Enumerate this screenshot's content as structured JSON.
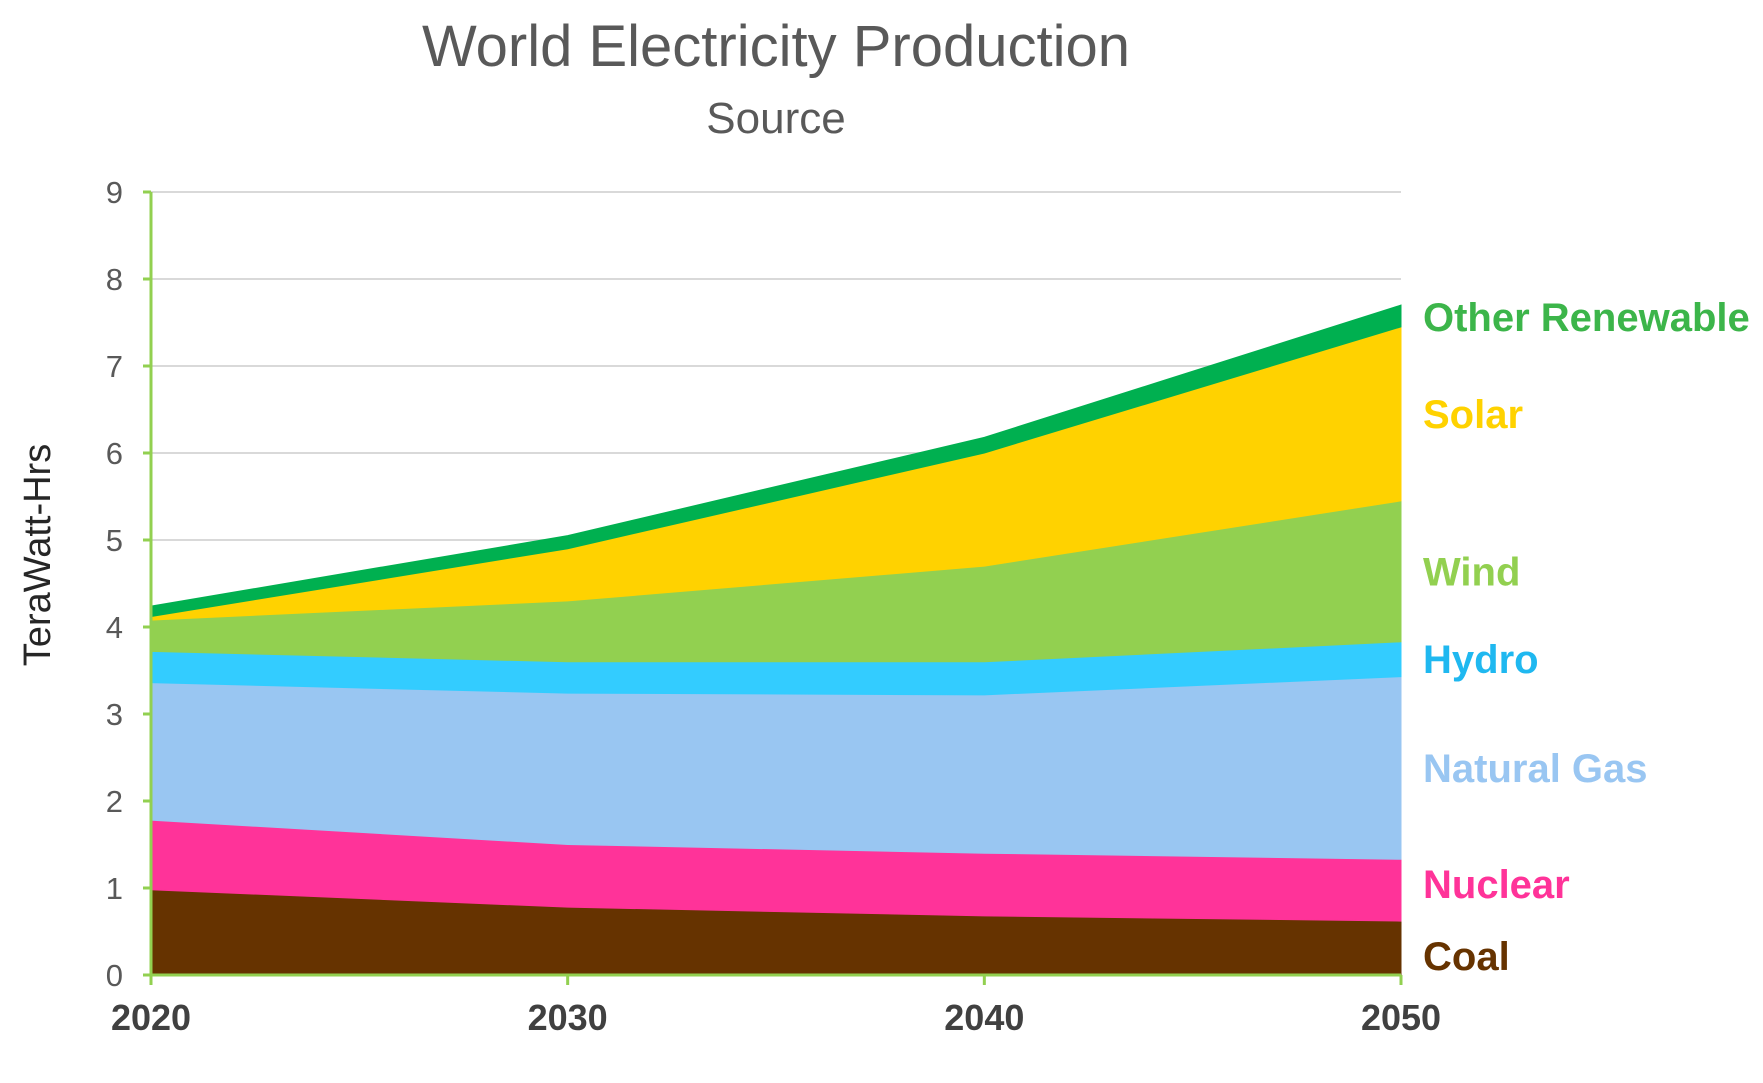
{
  "chart_data": {
    "type": "area",
    "stacked": true,
    "title": "World Electricity Production",
    "subtitle": "Source",
    "ylabel": "TeraWatt-Hrs",
    "xlabel": "",
    "x": [
      2020,
      2030,
      2040,
      2050
    ],
    "ylim": [
      0,
      9
    ],
    "yticks": [
      0,
      1,
      2,
      3,
      4,
      5,
      6,
      7,
      8,
      9
    ],
    "grid": true,
    "legend": "inline-right",
    "series": [
      {
        "name": "Coal",
        "color": "#663300",
        "values": [
          0.98,
          0.78,
          0.68,
          0.62
        ]
      },
      {
        "name": "Nuclear",
        "color": "#ff3399",
        "values": [
          0.8,
          0.72,
          0.72,
          0.71
        ]
      },
      {
        "name": "Natural Gas",
        "color": "#99c6f2",
        "values": [
          1.58,
          1.74,
          1.82,
          2.1
        ]
      },
      {
        "name": "Hydro",
        "color": "#33ccff",
        "values": [
          0.36,
          0.36,
          0.38,
          0.4
        ]
      },
      {
        "name": "Wind",
        "color": "#92d050",
        "values": [
          0.36,
          0.7,
          1.1,
          1.62
        ]
      },
      {
        "name": "Solar",
        "color": "#ffd200",
        "values": [
          0.04,
          0.6,
          1.3,
          2.0
        ]
      },
      {
        "name": "Other Renewable",
        "color": "#00b050",
        "values": [
          0.12,
          0.15,
          0.18,
          0.25
        ]
      }
    ],
    "label_colors": {
      "Coal": "#663300",
      "Nuclear": "#ff3399",
      "Natural Gas": "#99c6f2",
      "Hydro": "#1fb8f0",
      "Wind": "#92d050",
      "Solar": "#ffd200",
      "Other Renewable": "#3cb54a"
    }
  }
}
